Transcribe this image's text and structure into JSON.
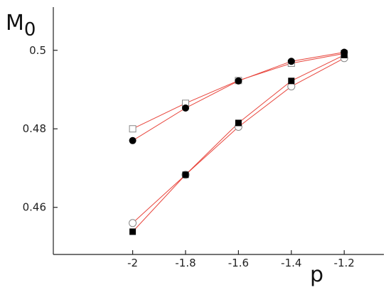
{
  "chart_data": {
    "type": "scatter",
    "title": "",
    "xlabel": "p",
    "ylabel": "M",
    "ylabel_subscript": "0",
    "xlim": [
      -2.3,
      -1.05
    ],
    "ylim": [
      0.448,
      0.511
    ],
    "xticks": [
      -2,
      -1.8,
      -1.6,
      -1.4,
      -1.2
    ],
    "xtick_labels": [
      "-2",
      "-1.8",
      "-1.6",
      "-1.4",
      "-1.2"
    ],
    "yticks": [
      0.46,
      0.48,
      0.5
    ],
    "ytick_labels": [
      "0.46",
      "0.48",
      "0.5"
    ],
    "grid": false,
    "legend": "none",
    "line_color": "#e8453c",
    "series": [
      {
        "marker": "open-square",
        "x": [
          -2,
          -1.8,
          -1.6,
          -1.4,
          -1.2
        ],
        "y": [
          0.48,
          0.4865,
          0.4923,
          0.4967,
          0.4992
        ]
      },
      {
        "marker": "filled-circle",
        "x": [
          -2,
          -1.8,
          -1.6,
          -1.4,
          -1.2
        ],
        "y": [
          0.477,
          0.4853,
          0.4922,
          0.4972,
          0.4995
        ]
      },
      {
        "marker": "open-circle",
        "x": [
          -2,
          -1.8,
          -1.6,
          -1.4,
          -1.2
        ],
        "y": [
          0.456,
          0.4683,
          0.4805,
          0.4908,
          0.498
        ]
      },
      {
        "marker": "filled-square",
        "x": [
          -2,
          -1.8,
          -1.6,
          -1.4,
          -1.2
        ],
        "y": [
          0.4538,
          0.4683,
          0.4815,
          0.4922,
          0.4988
        ]
      }
    ]
  }
}
